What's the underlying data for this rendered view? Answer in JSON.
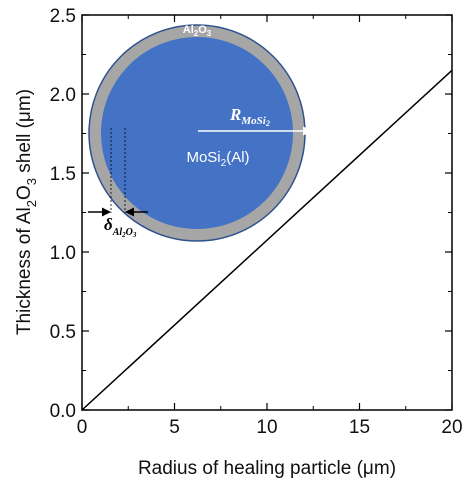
{
  "chart_data": {
    "type": "line",
    "xlabel": {
      "pre": "Radius of healing particle (",
      "unit": "μm",
      "post": ")"
    },
    "ylabel": {
      "p1": "Thickness of Al",
      "s1": "2",
      "p2": "O",
      "s2": "3",
      "p3": " shell (",
      "unit": "μm",
      "p4": ")"
    },
    "xlim": [
      0,
      20
    ],
    "ylim": [
      0,
      2.5
    ],
    "x_ticks": [
      "0",
      "5",
      "10",
      "15",
      "20"
    ],
    "y_ticks": [
      "0.0",
      "0.5",
      "1.0",
      "1.5",
      "2.0",
      "2.5"
    ],
    "grid": false,
    "series": [
      {
        "x": [
          0,
          20
        ],
        "y": [
          0,
          2.15
        ]
      }
    ],
    "line_color": "#000000",
    "inset": {
      "shell_label": {
        "base": "Al",
        "s1": "2",
        "mid": "O",
        "s2": "3"
      },
      "core_label": {
        "base": "MoSi",
        "sub": "2",
        "rest": "(Al)"
      },
      "radius_label": {
        "sym": "R",
        "sub": "MoSi",
        "sub2": "2"
      },
      "thickness_label": {
        "sym": "δ",
        "sub": "Al",
        "s1": "2",
        "mid": "O",
        "s2": "3"
      },
      "core_color": "#4472c4",
      "shell_color": "#a6a6a6",
      "outline_color": "#2f528f"
    }
  }
}
